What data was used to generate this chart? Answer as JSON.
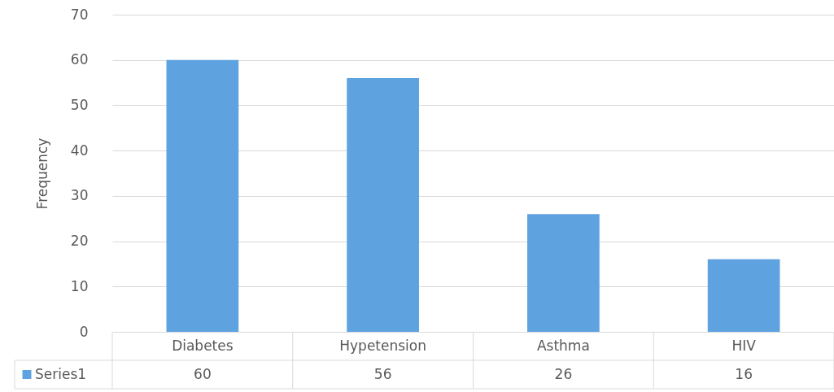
{
  "chart_data": {
    "type": "bar",
    "ylabel": "Frequency",
    "categories": [
      "Diabetes",
      "Hypetension",
      "Asthma",
      "HIV"
    ],
    "series": [
      {
        "name": "Series1",
        "color": "#5fa2e0",
        "values": [
          60,
          56,
          26,
          16
        ]
      }
    ],
    "ylim": [
      0,
      70
    ],
    "yticks": [
      0,
      10,
      20,
      30,
      40,
      50,
      60,
      70
    ],
    "grid": "y",
    "legend": "bottom",
    "data_labels": true
  }
}
